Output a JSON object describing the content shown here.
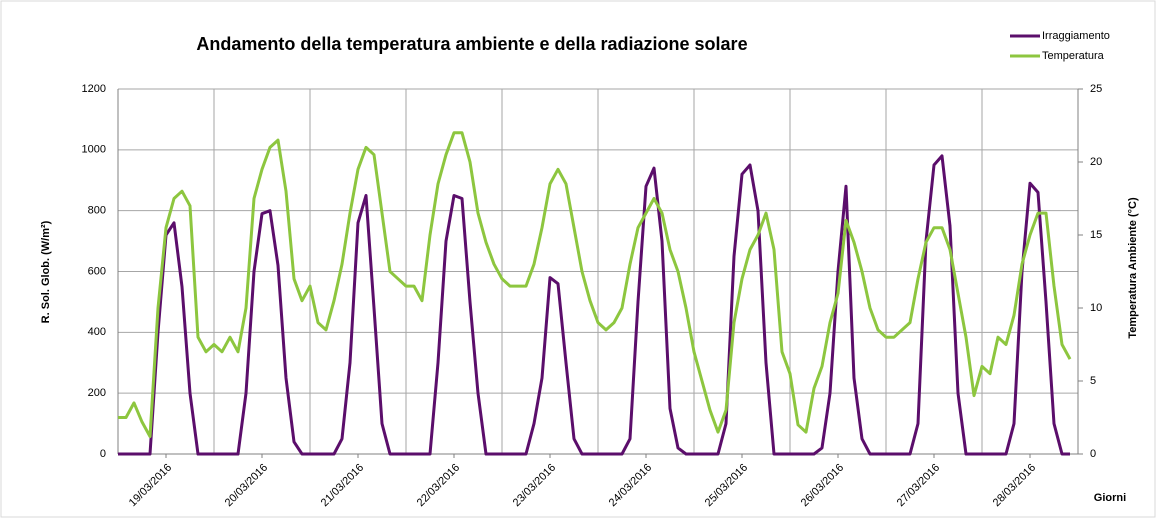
{
  "chart_data": {
    "type": "line",
    "title": "Andamento della temperatura ambiente e della radiazione solare",
    "ylabel": "R. Sol. Glob. (W/m²)",
    "y2label": "Temperatura Ambiente (°C)",
    "xlabel": "Giorni",
    "legend": "top-right",
    "grid": true,
    "xlim": [
      0,
      240
    ],
    "xgrid": [
      0,
      24,
      48,
      72,
      96,
      120,
      144,
      168,
      192,
      216,
      240
    ],
    "xticks": [
      {
        "value": 12,
        "label": "19/03/2016"
      },
      {
        "value": 36,
        "label": "20/03/2016"
      },
      {
        "value": 60,
        "label": "21/03/2016"
      },
      {
        "value": 84,
        "label": "22/03/2016"
      },
      {
        "value": 108,
        "label": "23/03/2016"
      },
      {
        "value": 132,
        "label": "24/03/2016"
      },
      {
        "value": 156,
        "label": "25/03/2016"
      },
      {
        "value": 180,
        "label": "26/03/2016"
      },
      {
        "value": 204,
        "label": "27/03/2016"
      },
      {
        "value": 228,
        "label": "28/03/2016"
      }
    ],
    "ylim": [
      0,
      1200
    ],
    "yticks": [
      0,
      200,
      400,
      600,
      800,
      1000,
      1200
    ],
    "y2lim": [
      0,
      25
    ],
    "y2ticks": [
      0,
      5,
      10,
      15,
      20,
      25
    ],
    "x": [
      0,
      2,
      4,
      6,
      8,
      10,
      12,
      14,
      16,
      18,
      20,
      22,
      24,
      26,
      28,
      30,
      32,
      34,
      36,
      38,
      40,
      42,
      44,
      46,
      48,
      50,
      52,
      54,
      56,
      58,
      60,
      62,
      64,
      66,
      68,
      70,
      72,
      74,
      76,
      78,
      80,
      82,
      84,
      86,
      88,
      90,
      92,
      94,
      96,
      98,
      100,
      102,
      104,
      106,
      108,
      110,
      112,
      114,
      116,
      118,
      120,
      122,
      124,
      126,
      128,
      130,
      132,
      134,
      136,
      138,
      140,
      142,
      144,
      146,
      148,
      150,
      152,
      154,
      156,
      158,
      160,
      162,
      164,
      166,
      168,
      170,
      172,
      174,
      176,
      178,
      180,
      182,
      184,
      186,
      188,
      190,
      192,
      194,
      196,
      198,
      200,
      202,
      204,
      206,
      208,
      210,
      212,
      214,
      216,
      218,
      220,
      222,
      224,
      226,
      228,
      230,
      232,
      234,
      236,
      238
    ],
    "series": [
      {
        "name": "Irraggiamento",
        "color": "#5b0e6b",
        "axis": "y",
        "values": [
          0,
          0,
          0,
          0,
          0,
          400,
          720,
          760,
          550,
          200,
          0,
          0,
          0,
          0,
          0,
          0,
          200,
          600,
          790,
          800,
          620,
          250,
          40,
          0,
          0,
          0,
          0,
          0,
          50,
          300,
          760,
          850,
          480,
          100,
          0,
          0,
          0,
          0,
          0,
          0,
          300,
          700,
          850,
          840,
          500,
          200,
          0,
          0,
          0,
          0,
          0,
          0,
          100,
          250,
          580,
          560,
          300,
          50,
          0,
          0,
          0,
          0,
          0,
          0,
          50,
          500,
          880,
          940,
          700,
          150,
          20,
          0,
          0,
          0,
          0,
          0,
          100,
          650,
          920,
          950,
          800,
          300,
          0,
          0,
          0,
          0,
          0,
          0,
          20,
          200,
          600,
          880,
          250,
          50,
          0,
          0,
          0,
          0,
          0,
          0,
          100,
          700,
          950,
          980,
          750,
          200,
          0,
          0,
          0,
          0,
          0,
          0,
          100,
          600,
          890,
          860,
          500,
          100,
          0,
          0
        ]
      },
      {
        "name": "Temperatura",
        "color": "#8dc63f",
        "axis": "y2",
        "values": [
          2.5,
          2.5,
          3.5,
          2.2,
          1.2,
          10,
          15.5,
          17.5,
          18,
          17,
          8,
          7,
          7.5,
          7,
          8,
          7,
          10,
          17.5,
          19.5,
          21,
          21.5,
          18,
          12,
          10.5,
          11.5,
          9,
          8.5,
          10.5,
          13,
          16.5,
          19.5,
          21,
          20.5,
          16.5,
          12.5,
          12,
          11.5,
          11.5,
          10.5,
          15,
          18.5,
          20.5,
          22,
          22,
          20,
          16.5,
          14.5,
          13,
          12,
          11.5,
          11.5,
          11.5,
          13,
          15.5,
          18.5,
          19.5,
          18.5,
          15.5,
          12.5,
          10.5,
          9,
          8.5,
          9,
          10,
          13,
          15.5,
          16.5,
          17.5,
          16.5,
          14,
          12.5,
          10,
          7,
          5,
          3,
          1.5,
          3,
          9,
          12,
          14,
          15,
          16.5,
          14,
          7,
          5.5,
          2,
          1.5,
          4.5,
          6,
          9,
          11,
          16,
          14.5,
          12.5,
          10,
          8.5,
          8,
          8,
          8.5,
          9,
          12,
          14.5,
          15.5,
          15.5,
          14,
          11,
          8,
          4,
          6,
          5.5,
          8,
          7.5,
          9.5,
          13,
          15,
          16.5,
          16.5,
          11.5,
          7.5,
          6.5
        ]
      }
    ]
  }
}
